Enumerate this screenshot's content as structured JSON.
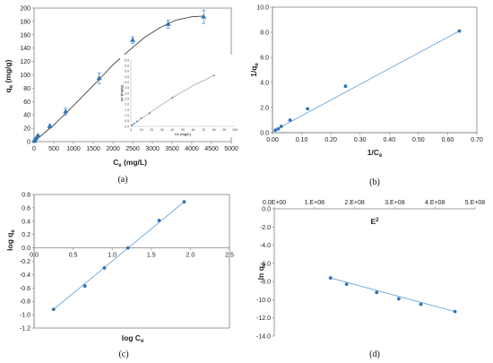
{
  "panels": {
    "a": {
      "label": "(a)",
      "ylabel": "q",
      "ylabel_sub": "e",
      "ylabel_rest": " (mg/g)",
      "xlabel": "C",
      "xlabel_sub": "e",
      "xlabel_rest": " (mg/L)",
      "inset": {
        "ylabel": "q",
        "ylabel_sub": "e",
        "ylabel_rest": " (mg/g)",
        "xlabel": "C",
        "xlabel_sub": "e",
        "xlabel_rest": " (mg/L)"
      }
    },
    "b": {
      "label": "(b)",
      "ylabel": "1/q",
      "ylabel_sub": "e",
      "xlabel": "1/C",
      "xlabel_sub": "e"
    },
    "c": {
      "label": "(c)",
      "ylabel": "log q",
      "ylabel_sub": "e",
      "xlabel": "log C",
      "xlabel_sub": "e"
    },
    "d": {
      "label": "(d)",
      "ylabel": "ln q",
      "ylabel_sub": "e",
      "xlabel": "E",
      "xlabel_sup": "2"
    }
  },
  "colors": {
    "marker": "#2e75b6",
    "fit": "#5b9bd5",
    "curve_a": "#404040",
    "axis": "#7f7f7f"
  },
  "chart_data": [
    {
      "id": "a",
      "type": "scatter",
      "marker": "triangle",
      "x": [
        5,
        20,
        50,
        100,
        400,
        800,
        1650,
        2500,
        3400,
        4300
      ],
      "y": [
        1,
        2,
        5,
        9,
        23,
        45,
        95,
        152,
        176,
        187
      ],
      "error": [
        1,
        1,
        1,
        1,
        3,
        5,
        8,
        5,
        6,
        10
      ],
      "fit_curve": {
        "x": [
          0,
          200,
          500,
          800,
          1200,
          1600,
          2000,
          2400,
          2800,
          3200,
          3600,
          4000,
          4300
        ],
        "y": [
          0,
          10,
          25,
          42,
          66,
          90,
          115,
          136,
          156,
          171,
          182,
          187,
          188
        ]
      },
      "xlim": [
        0,
        5000
      ],
      "ylim": [
        0,
        200
      ],
      "xticks": [
        "0",
        "500",
        "1000",
        "1500",
        "2000",
        "2500",
        "3000",
        "3500",
        "4000",
        "4500",
        "5000"
      ],
      "yticks": [
        "0",
        "20",
        "40",
        "60",
        "80",
        "100",
        "120",
        "140",
        "160",
        "180",
        "200"
      ],
      "inset": {
        "type": "scatter",
        "x": [
          1,
          3,
          6,
          10,
          18,
          40,
          80
        ],
        "y": [
          0.1,
          0.25,
          0.45,
          0.75,
          1.2,
          2.6,
          4.6
        ],
        "fit_curve": {
          "x": [
            0,
            10,
            20,
            40,
            60,
            80
          ],
          "y": [
            0,
            0.7,
            1.35,
            2.6,
            3.7,
            4.6
          ]
        },
        "xlim": [
          0,
          100
        ],
        "ylim": [
          0,
          6
        ],
        "xticks": [
          "0",
          "10",
          "20",
          "30",
          "40",
          "50",
          "60",
          "70",
          "80",
          "90",
          "100"
        ],
        "yticks": [
          "0.0",
          "0.5",
          "1.0",
          "1.5",
          "2.0",
          "2.5",
          "3.0",
          "3.5",
          "4.0",
          "4.5",
          "5.0",
          "5.5",
          "6.0"
        ]
      }
    },
    {
      "id": "b",
      "type": "scatter",
      "x": [
        0.01,
        0.02,
        0.03,
        0.06,
        0.12,
        0.25,
        0.64
      ],
      "y": [
        0.2,
        0.3,
        0.5,
        1.0,
        1.9,
        3.7,
        8.1
      ],
      "fit_line": {
        "x": [
          0.0,
          0.64
        ],
        "y": [
          0.1,
          8.1
        ]
      },
      "xlim": [
        0,
        0.7
      ],
      "ylim": [
        0,
        10
      ],
      "xticks": [
        "0.00",
        "0.10",
        "0.20",
        "0.30",
        "0.40",
        "0.50",
        "0.60",
        "0.70"
      ],
      "yticks": [
        "0.0",
        "2.0",
        "4.0",
        "6.0",
        "8.0",
        "10.0"
      ]
    },
    {
      "id": "c",
      "type": "scatter",
      "x": [
        0.25,
        0.65,
        0.9,
        1.2,
        1.6,
        1.92
      ],
      "y": [
        -0.92,
        -0.57,
        -0.3,
        0.0,
        0.41,
        0.69
      ],
      "fit_line": {
        "x": [
          0.25,
          1.92
        ],
        "y": [
          -0.92,
          0.69
        ]
      },
      "xlim": [
        0,
        2.5
      ],
      "ylim": [
        -1.2,
        0.8
      ],
      "xticks": [
        "0.0",
        "0.5",
        "1.0",
        "1.5",
        "2.0",
        "2.5"
      ],
      "yticks": [
        "-1.2",
        "-1.0",
        "-0.8",
        "-0.6",
        "-0.4",
        "-0.2",
        "0.0",
        "0.2",
        "0.4",
        "0.6",
        "0.8"
      ]
    },
    {
      "id": "d",
      "type": "scatter",
      "x": [
        140000000,
        180000000,
        255000000,
        310000000,
        365000000,
        450000000
      ],
      "y": [
        -7.6,
        -8.3,
        -9.2,
        -9.9,
        -10.5,
        -11.3
      ],
      "fit_line": {
        "x": [
          140000000,
          450000000
        ],
        "y": [
          -7.6,
          -11.3
        ]
      },
      "xlim": [
        0,
        500000000
      ],
      "ylim": [
        -14,
        0
      ],
      "xticks": [
        "0.0E+00",
        "1.E+08",
        "2.E+08",
        "3.E+08",
        "4.E+08",
        "5.E+08"
      ],
      "yticks": [
        "0.0",
        "-2.0",
        "-4.0",
        "-6.0",
        "-8.0",
        "-10.0",
        "-12.0",
        "-14.0"
      ]
    }
  ]
}
